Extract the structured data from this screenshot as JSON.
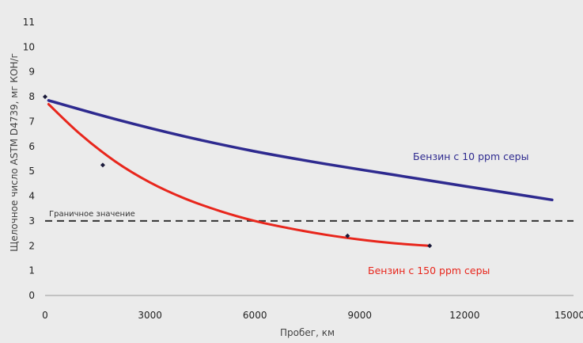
{
  "chart_data": {
    "type": "line",
    "xlabel": "Пробег, км",
    "ylabel": "Щелочное число ASTM D4739, мг КОН/г",
    "xlim": [
      0,
      15000
    ],
    "ylim": [
      0,
      11
    ],
    "xticks": [
      0,
      3000,
      6000,
      9000,
      12000,
      15000
    ],
    "yticks": [
      0,
      1,
      2,
      3,
      4,
      5,
      6,
      7,
      8,
      9,
      10,
      11
    ],
    "grid": false,
    "reference_line": {
      "label": "Граничное значение",
      "value": 3
    },
    "series": [
      {
        "name": "Бензин с 10 ppm серы",
        "color": "#2e2a8f",
        "curve": [
          [
            100,
            7.85
          ],
          [
            2000,
            7.1
          ],
          [
            4000,
            6.4
          ],
          [
            6000,
            5.8
          ],
          [
            8000,
            5.3
          ],
          [
            10000,
            4.85
          ],
          [
            12000,
            4.4
          ],
          [
            14500,
            3.85
          ]
        ],
        "markers": [
          [
            0,
            8.0
          ]
        ]
      },
      {
        "name": "Бензин с 150 ppm серы",
        "color": "#e8261c",
        "curve": [
          [
            100,
            7.7
          ],
          [
            1000,
            6.5
          ],
          [
            2000,
            5.4
          ],
          [
            3000,
            4.55
          ],
          [
            4000,
            3.9
          ],
          [
            5000,
            3.4
          ],
          [
            6000,
            3.0
          ],
          [
            7000,
            2.7
          ],
          [
            8000,
            2.45
          ],
          [
            9000,
            2.25
          ],
          [
            10000,
            2.1
          ],
          [
            11000,
            2.0
          ]
        ],
        "markers": [
          [
            1650,
            5.25
          ],
          [
            8650,
            2.4
          ],
          [
            11000,
            2.0
          ]
        ]
      }
    ]
  }
}
